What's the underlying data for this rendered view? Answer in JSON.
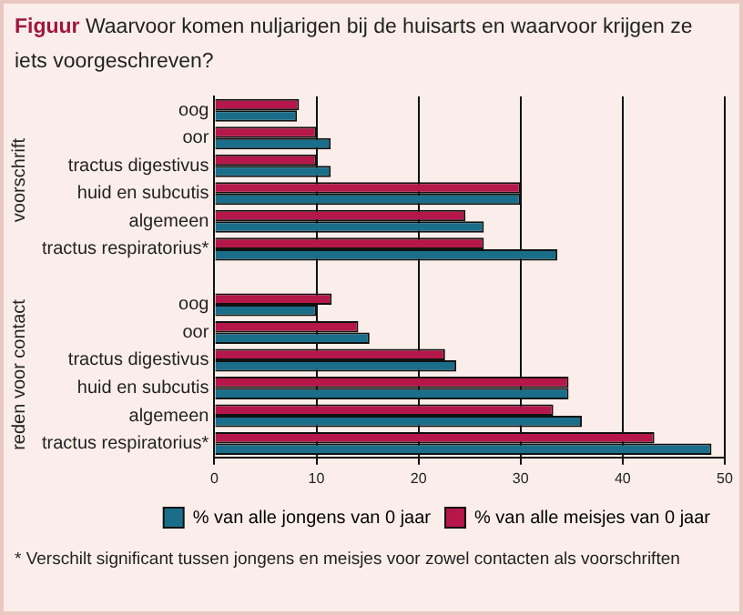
{
  "chart_data": {
    "type": "bar",
    "orientation": "horizontal",
    "title": "Figuur Waarvoor komen nuljarigen bij de huisarts en waarvoor krijgen ze iets voorgeschreven?",
    "categories": [
      "oog",
      "oor",
      "tractus digestivus",
      "huid en subcutis",
      "algemeen",
      "tractus respiratorius*",
      null,
      "oog",
      "oor",
      "tractus digestivus",
      "huid en subcutis",
      "algemeen",
      "tractus respiratorius*"
    ],
    "series": [
      {
        "name": "% van alle meisjes van 0 jaar",
        "color": "#b5174b",
        "values": [
          8.3,
          10.0,
          10.0,
          30.0,
          24.6,
          26.4,
          null,
          11.5,
          14.1,
          22.6,
          34.7,
          33.2,
          43.1
        ]
      },
      {
        "name": "% van alle jongens van 0 jaar",
        "color": "#1a6e8a",
        "values": [
          8.1,
          11.4,
          11.4,
          30.0,
          26.4,
          33.6,
          null,
          10.0,
          15.2,
          23.7,
          34.7,
          36.0,
          48.7
        ]
      }
    ],
    "xlim": [
      0,
      50
    ],
    "xticks": [
      0,
      10,
      20,
      30,
      40,
      50
    ],
    "grid": "x",
    "legend": "bottom",
    "annotations": [
      "voorschrift",
      "reden voor contact",
      "* Verschilt significant tussen jongens en meisjes voor zowel contacten als voorschriften"
    ]
  }
}
